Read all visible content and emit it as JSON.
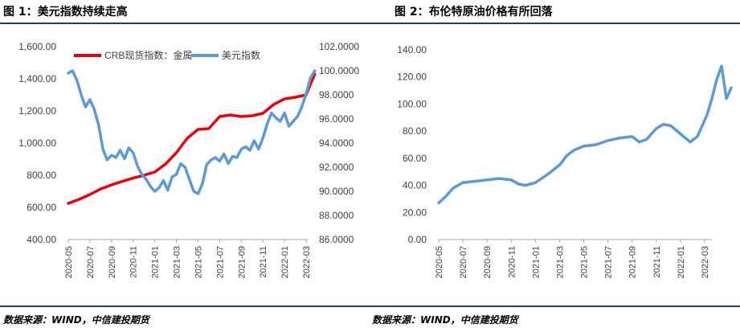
{
  "figures": [
    {
      "title": "图 1：美元指数持续走高",
      "source": "数据来源：WIND，中信建投期货"
    },
    {
      "title": "图 2：布伦特原油价格有所回落",
      "source": "数据来源：WIND，中信建投期货"
    }
  ],
  "chart_data": [
    {
      "type": "line",
      "title": "图 1：美元指数持续走高",
      "categories": [
        "2020-05",
        "2020-07",
        "2020-09",
        "2020-11",
        "2021-01",
        "2021-03",
        "2021-05",
        "2021-07",
        "2021-09",
        "2021-11",
        "2022-01",
        "2022-03"
      ],
      "y_left_ticks": [
        "400.00",
        "600.00",
        "800.00",
        "1,000.00",
        "1,200.00",
        "1,400.00",
        "1,600.00"
      ],
      "y_right_ticks": [
        "86.0000",
        "88.0000",
        "90.0000",
        "92.0000",
        "94.0000",
        "96.0000",
        "98.0000",
        "100.0000",
        "102.0000"
      ],
      "ylim_left": [
        400,
        1600
      ],
      "ylim_right": [
        86,
        102
      ],
      "legend_position": "top",
      "grid": false,
      "series": [
        {
          "name": "CRB现货指数：金属",
          "axis": "left",
          "color": "#e8000b",
          "x": [
            0,
            0.5,
            1,
            1.5,
            2,
            2.5,
            3,
            3.5,
            4,
            4.5,
            5,
            5.5,
            6,
            6.5,
            7,
            7.5,
            8,
            8.5,
            9,
            9.5,
            10,
            10.5,
            11,
            11.4
          ],
          "values": [
            625,
            650,
            680,
            715,
            740,
            762,
            782,
            800,
            820,
            870,
            940,
            1030,
            1085,
            1090,
            1165,
            1175,
            1165,
            1170,
            1185,
            1240,
            1275,
            1285,
            1300,
            1430
          ]
        },
        {
          "name": "美元指数",
          "axis": "right",
          "color": "#5b9bd5",
          "x": [
            0,
            0.2,
            0.4,
            0.6,
            0.8,
            1,
            1.2,
            1.4,
            1.6,
            1.8,
            2,
            2.2,
            2.4,
            2.6,
            2.8,
            3,
            3.2,
            3.4,
            3.6,
            3.8,
            4,
            4.2,
            4.4,
            4.6,
            4.8,
            5,
            5.2,
            5.4,
            5.6,
            5.8,
            6,
            6.2,
            6.4,
            6.6,
            6.8,
            7,
            7.2,
            7.4,
            7.6,
            7.8,
            8,
            8.2,
            8.4,
            8.6,
            8.8,
            9,
            9.2,
            9.4,
            9.6,
            9.8,
            10,
            10.2,
            10.4,
            10.6,
            10.8,
            11,
            11.2,
            11.4
          ],
          "values": [
            99.8,
            100.0,
            99.2,
            98.0,
            97.0,
            97.6,
            96.8,
            95.5,
            93.5,
            92.6,
            93.0,
            92.8,
            93.4,
            92.7,
            93.6,
            93.2,
            92.1,
            91.4,
            91.0,
            90.4,
            90.0,
            90.3,
            90.9,
            90.1,
            91.2,
            91.4,
            92.3,
            92.0,
            91.0,
            90.0,
            89.8,
            90.6,
            92.2,
            92.6,
            92.8,
            92.5,
            93.1,
            92.3,
            92.9,
            92.8,
            93.5,
            93.7,
            93.4,
            94.2,
            93.5,
            94.4,
            95.6,
            96.5,
            96.1,
            95.8,
            96.5,
            95.4,
            95.8,
            96.2,
            97.0,
            98.1,
            99.4,
            100.0
          ]
        }
      ]
    },
    {
      "type": "line",
      "title": "图 2：布伦特原油价格有所回落",
      "categories": [
        "2020-05",
        "2020-07",
        "2020-09",
        "2020-11",
        "2021-01",
        "2021-03",
        "2021-05",
        "2021-07",
        "2021-09",
        "2021-11",
        "2022-01",
        "2022-03"
      ],
      "y_ticks": [
        "0.00",
        "20.00",
        "40.00",
        "60.00",
        "80.00",
        "100.00",
        "120.00",
        "140.00"
      ],
      "ylim": [
        0,
        140
      ],
      "grid": false,
      "series": [
        {
          "color": "#5b9bd5",
          "x": [
            0,
            0.3,
            0.6,
            1,
            1.5,
            2,
            2.5,
            3,
            3.3,
            3.6,
            4,
            4.5,
            5,
            5.3,
            5.6,
            6,
            6.5,
            7,
            7.5,
            8,
            8.3,
            8.6,
            9,
            9.3,
            9.6,
            10,
            10.4,
            10.7,
            11,
            11.1,
            11.3,
            11.5,
            11.7,
            11.9,
            12.1
          ],
          "values": [
            27,
            32,
            38,
            42,
            43,
            44,
            45,
            44,
            41,
            40,
            42,
            48,
            55,
            62,
            66,
            69,
            70,
            73,
            75,
            76,
            72,
            74,
            82,
            85,
            84,
            78,
            72,
            76,
            88,
            92,
            104,
            118,
            128,
            104,
            112
          ]
        }
      ]
    }
  ]
}
